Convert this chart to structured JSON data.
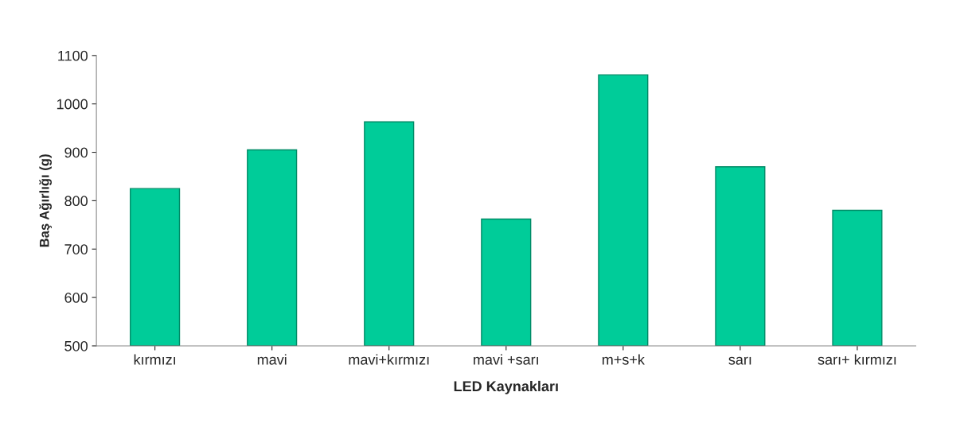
{
  "chart_data": {
    "type": "bar",
    "xlabel": "LED Kaynakları",
    "ylabel": "Baş Ağırlığı (g)",
    "categories": [
      "kırmızı",
      "mavi",
      "mavi+kırmızı",
      "mavi +sarı",
      "m+s+k",
      "sarı",
      "sarı+ kırmızı"
    ],
    "values": [
      825,
      905,
      963,
      762,
      1060,
      870,
      780
    ],
    "color": "#00cc99",
    "ylim": [
      500,
      1100
    ],
    "yticks": [
      500,
      600,
      700,
      800,
      900,
      1000,
      1100
    ],
    "grid": false,
    "legend": false
  }
}
